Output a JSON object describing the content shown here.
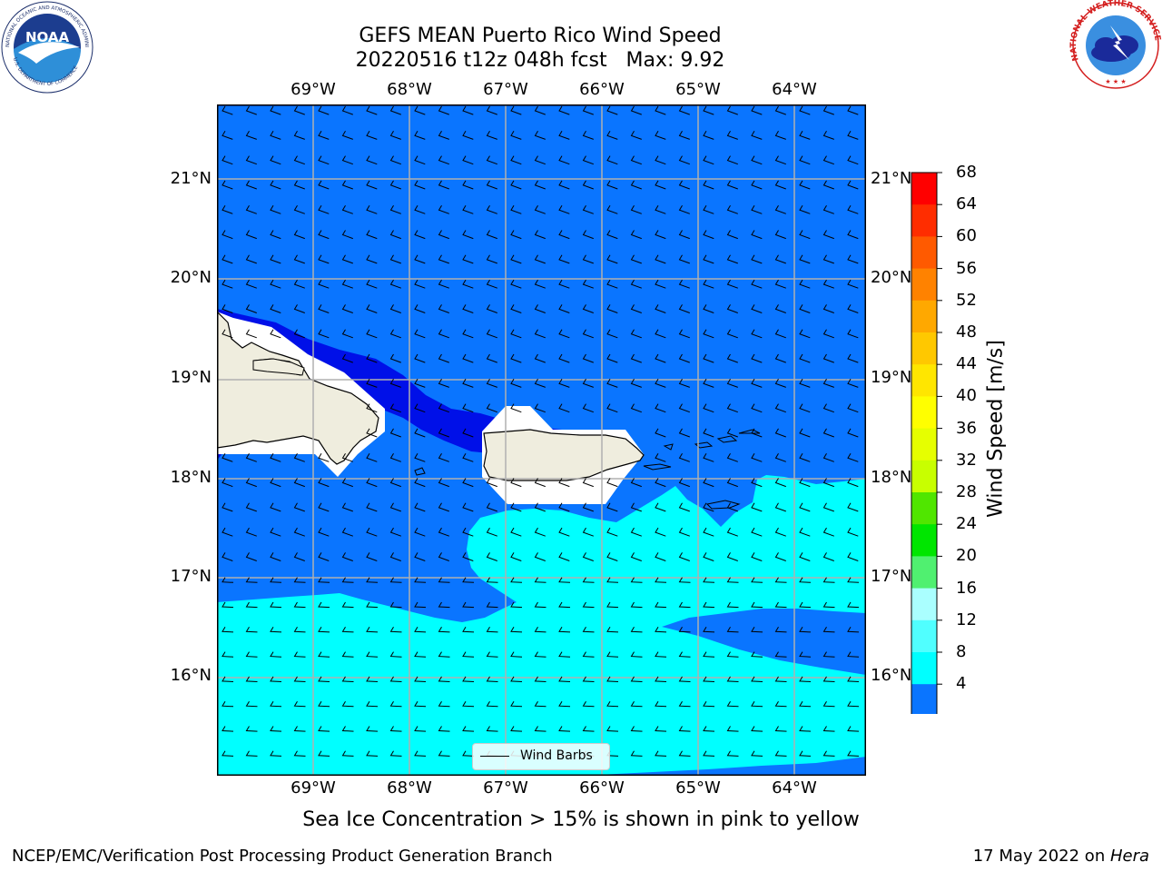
{
  "title": {
    "line1": "GEFS MEAN Puerto Rico Wind Speed",
    "line2": "20220516 t12z 048h fcst   Max: 9.92"
  },
  "map": {
    "lon_ticks": [
      "69°W",
      "68°W",
      "67°W",
      "66°W",
      "65°W",
      "64°W"
    ],
    "lat_ticks": [
      "21°N",
      "20°N",
      "19°N",
      "18°N",
      "17°N",
      "16°N"
    ],
    "legend_label": "Wind Barbs",
    "colors": {
      "ocean_4_8": "#0a75ff",
      "ocean_lt4": "#0010e8",
      "ocean_8_12": "#00ffff",
      "land": "#efedde",
      "gridline": "#b0b0b0"
    }
  },
  "colorbar": {
    "label": "Wind Speed [m/s]",
    "ticks": [
      "68",
      "64",
      "60",
      "56",
      "52",
      "48",
      "44",
      "40",
      "36",
      "32",
      "28",
      "24",
      "20",
      "16",
      "12",
      "8",
      "4"
    ],
    "colors": [
      "#ff0000",
      "#ff2d00",
      "#ff5a00",
      "#ff8200",
      "#ffa800",
      "#ffc800",
      "#ffe600",
      "#ffff00",
      "#e6ff00",
      "#c8ff00",
      "#50e600",
      "#00e600",
      "#50f070",
      "#aaffff",
      "#50ffff",
      "#00ffff",
      "#0a75ff"
    ],
    "extend_color": "#0010e8"
  },
  "subtitle": "Sea Ice Concentration > 15% is shown in pink to yellow",
  "footer": {
    "left": "NCEP/EMC/Verification Post Processing Product Generation Branch",
    "right_date": "17 May 2022 on ",
    "right_machine": "Hera"
  },
  "logos": {
    "noaa_text": "NOAA",
    "noaa_ring_top": "NATIONAL OCEANIC AND ATMOSPHERIC ADMINISTRATION",
    "noaa_ring_bottom": "U.S. DEPARTMENT OF COMMERCE",
    "nws_ring": "NATIONAL WEATHER SERVICE"
  }
}
